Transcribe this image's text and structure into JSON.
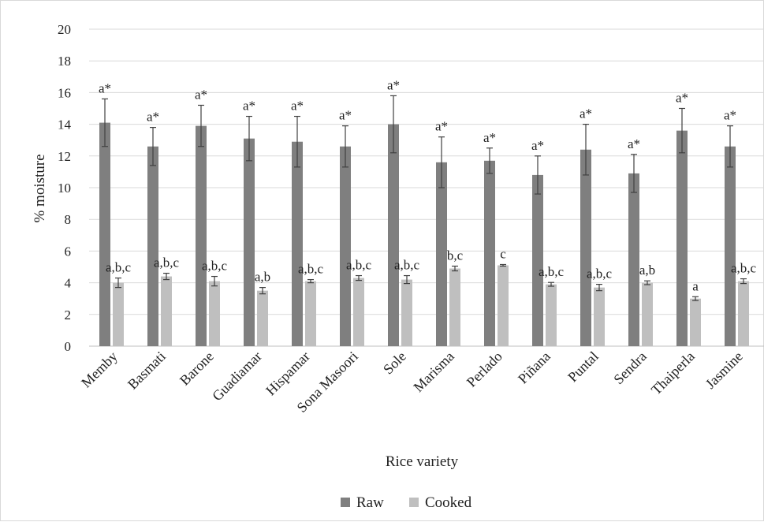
{
  "chart_data": {
    "type": "bar",
    "xlabel": "Rice variety",
    "ylabel": "% moisture",
    "ylim": [
      0,
      20
    ],
    "yticks": [
      0,
      2,
      4,
      6,
      8,
      10,
      12,
      14,
      16,
      18,
      20
    ],
    "grid": true,
    "legend_position": "bottom",
    "categories": [
      "Memby",
      "Basmati",
      "Barone",
      "Guadiamar",
      "Hispamar",
      "Sona Masoori",
      "Sole",
      "Marisma",
      "Perlado",
      "Piñana",
      "Puntal",
      "Sendra",
      "Thaiperla",
      "Jasmine"
    ],
    "series": [
      {
        "name": "Raw",
        "color": "#7f7f7f",
        "values": [
          14.1,
          12.6,
          13.9,
          13.1,
          12.9,
          12.6,
          14.0,
          11.6,
          11.7,
          10.8,
          12.4,
          10.9,
          13.6,
          12.6
        ],
        "errors": [
          1.5,
          1.2,
          1.3,
          1.4,
          1.6,
          1.3,
          1.8,
          1.6,
          0.8,
          1.2,
          1.6,
          1.2,
          1.4,
          1.3
        ],
        "labels": [
          "a*",
          "a*",
          "a*",
          "a*",
          "a*",
          "a*",
          "a*",
          "a*",
          "a*",
          "a*",
          "a*",
          "a*",
          "a*",
          "a*"
        ]
      },
      {
        "name": "Cooked",
        "color": "#bfbfbf",
        "values": [
          4.0,
          4.4,
          4.1,
          3.5,
          4.1,
          4.3,
          4.2,
          4.9,
          5.1,
          3.9,
          3.7,
          4.0,
          3.0,
          4.1
        ],
        "errors": [
          0.3,
          0.2,
          0.3,
          0.2,
          0.1,
          0.15,
          0.25,
          0.15,
          0.05,
          0.12,
          0.2,
          0.12,
          0.12,
          0.15
        ],
        "labels": [
          "a,b,c",
          "a,b,c",
          "a,b,c",
          "a,b",
          "a,b,c",
          "a,b,c",
          "a,b,c",
          "b,c",
          "c",
          "a,b,c",
          "a,b,c",
          "a,b",
          "a",
          "a,b,c"
        ]
      }
    ]
  }
}
